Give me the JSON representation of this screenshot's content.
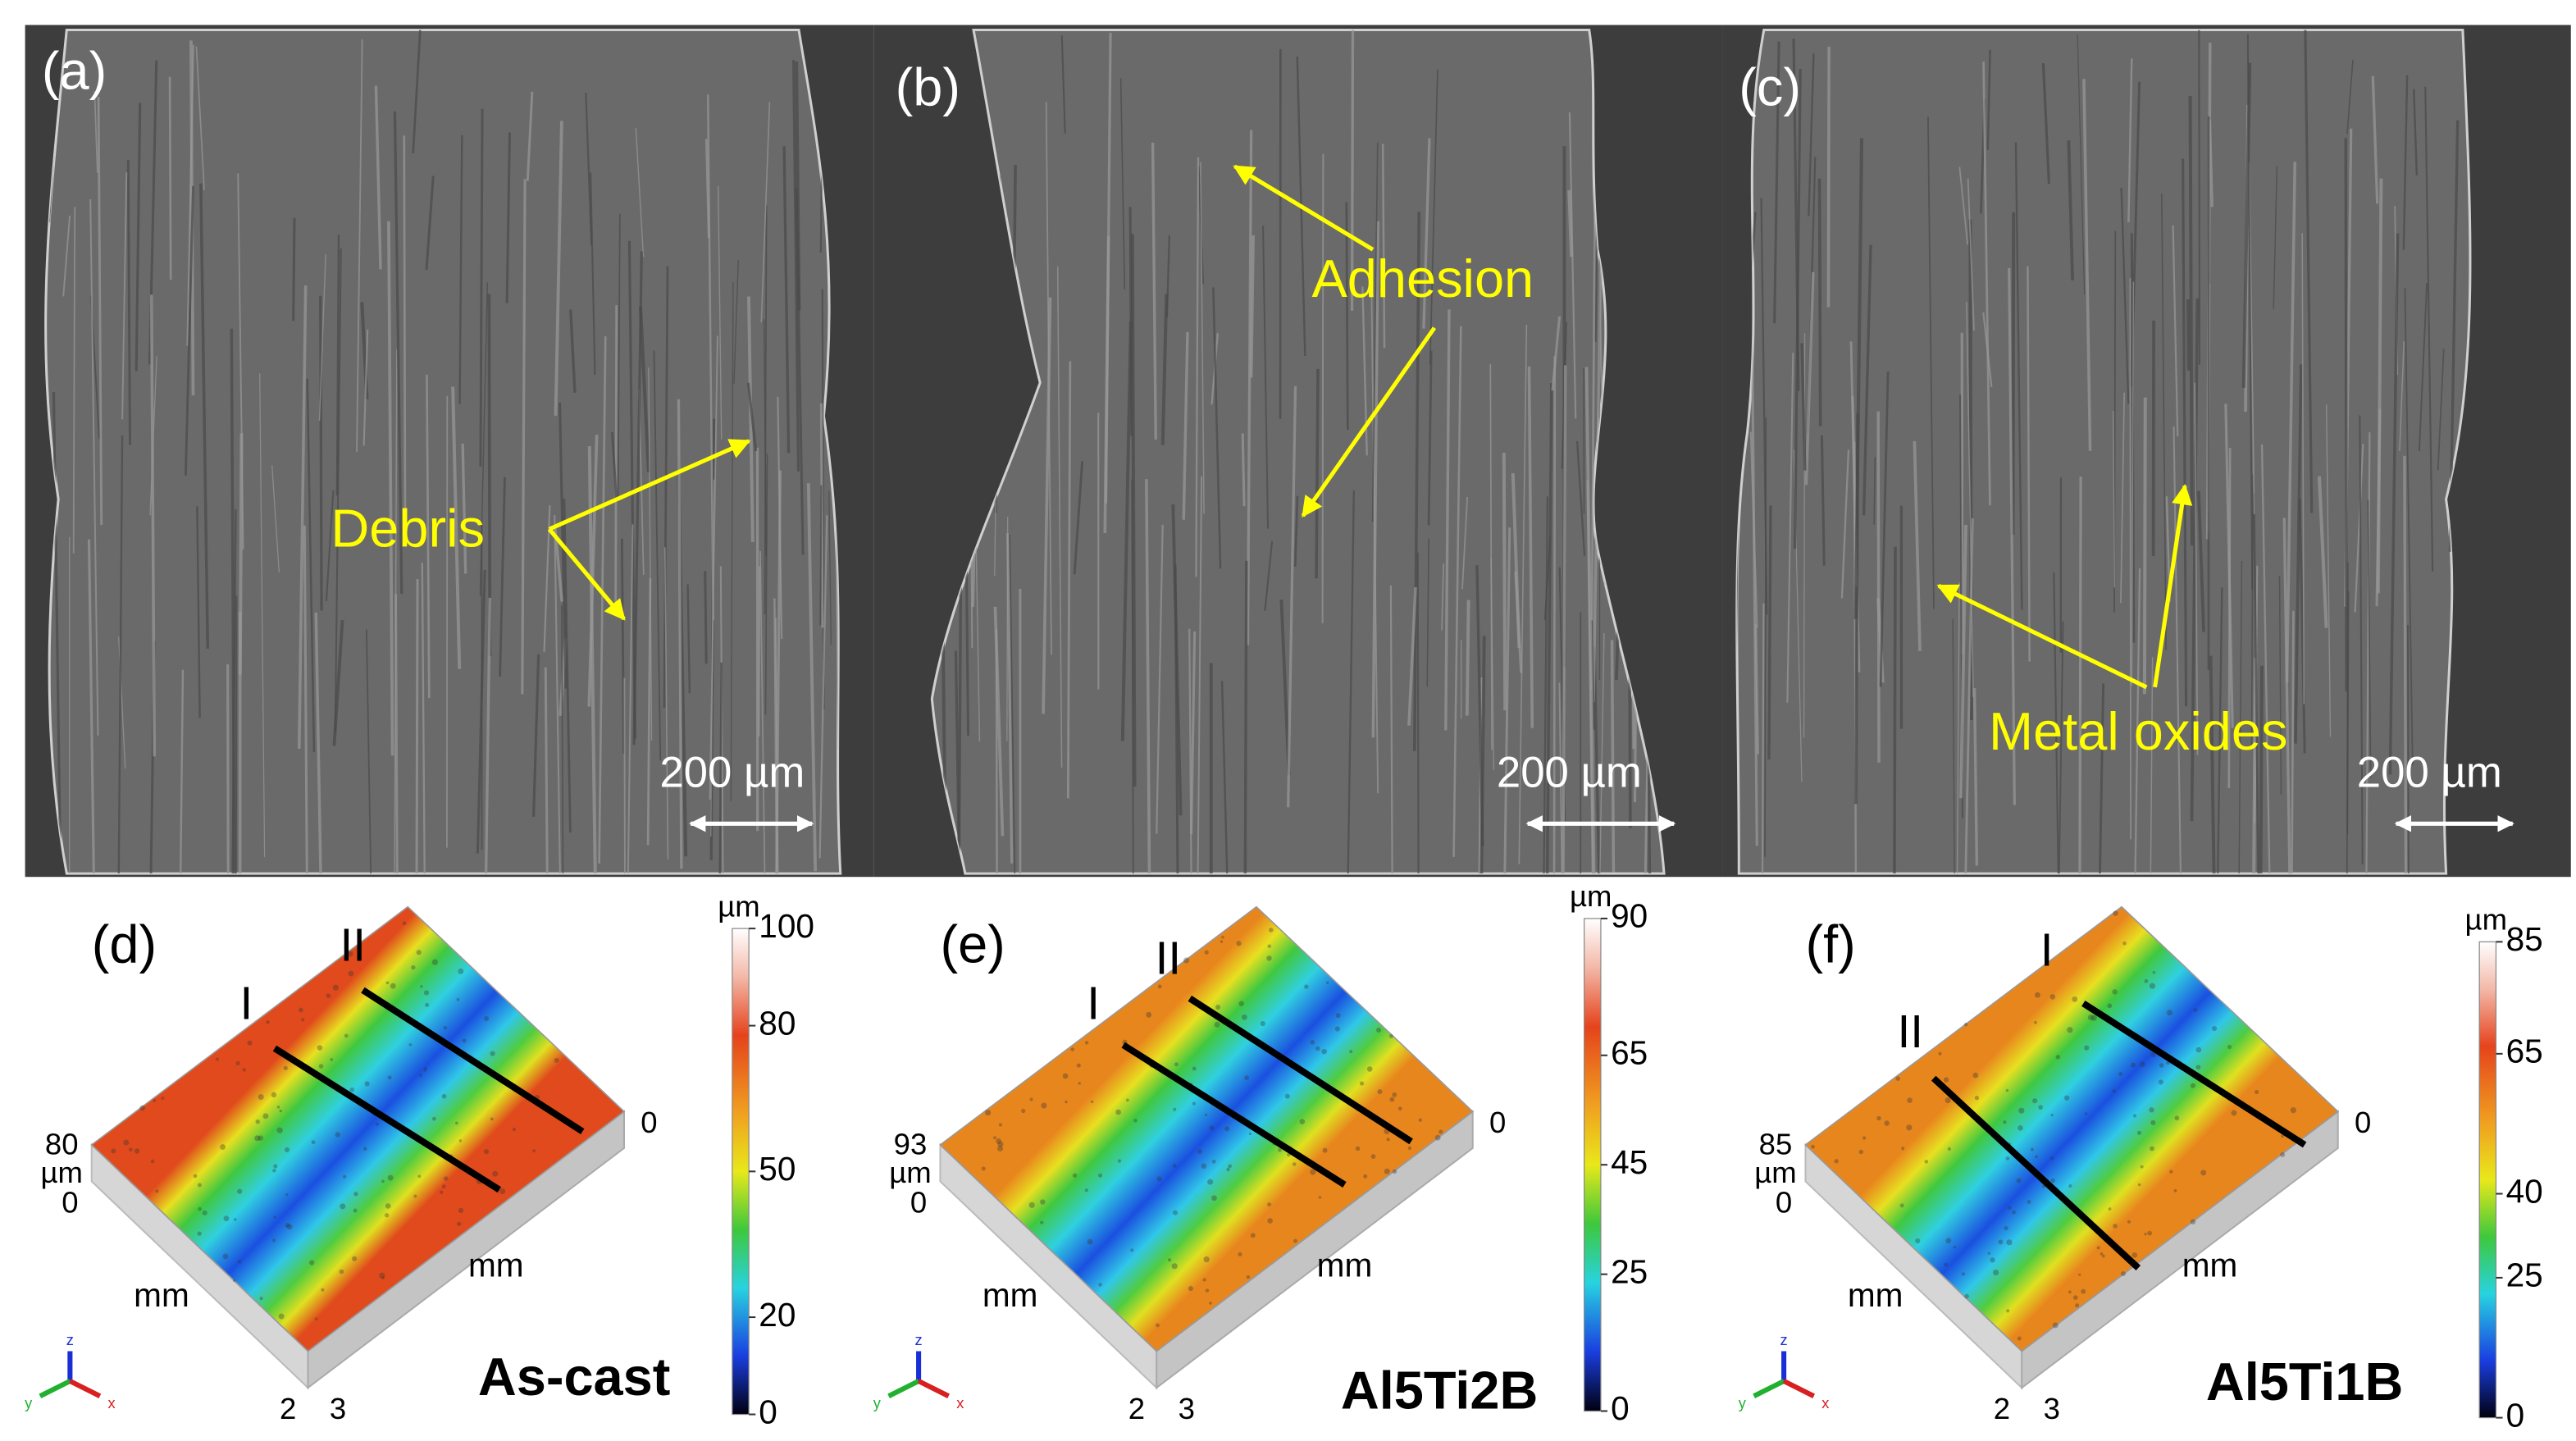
{
  "sem_panels": [
    {
      "label": "(a)",
      "scale_bar": "200 µm",
      "annotation": "Debris"
    },
    {
      "label": "(b)",
      "scale_bar": "200 µm",
      "annotation": "Adhesion"
    },
    {
      "label": "(c)",
      "scale_bar": "200 µm",
      "annotation": "Metal oxides"
    }
  ],
  "profile_panels": [
    {
      "label": "(d)",
      "sample": "As-cast",
      "section_lines": [
        "I",
        "II"
      ],
      "height_axis": {
        "max": 80,
        "unit": "µm",
        "min": 0
      },
      "plane_axes": {
        "left_unit": "mm",
        "right_unit": "mm",
        "right_end": 0,
        "corner_ticks": [
          2,
          3
        ]
      },
      "colorbar": {
        "unit": "µm",
        "ticks": [
          100,
          80,
          50,
          20,
          0
        ]
      },
      "triad": [
        "z",
        "y",
        "x"
      ]
    },
    {
      "label": "(e)",
      "sample": "Al5Ti2B",
      "section_lines": [
        "I",
        "II"
      ],
      "height_axis": {
        "max": 93,
        "unit": "µm",
        "min": 0
      },
      "plane_axes": {
        "left_unit": "mm",
        "right_unit": "mm",
        "right_end": 0,
        "corner_ticks": [
          2,
          3
        ]
      },
      "colorbar": {
        "unit": "µm",
        "ticks": [
          90,
          65,
          45,
          25,
          0
        ]
      },
      "triad": [
        "z",
        "y",
        "x"
      ]
    },
    {
      "label": "(f)",
      "sample": "Al5Ti1B",
      "section_lines": [
        "I",
        "II"
      ],
      "height_axis": {
        "max": 85,
        "unit": "µm",
        "min": 0
      },
      "plane_axes": {
        "left_unit": "mm",
        "right_unit": "mm",
        "right_end": 0,
        "corner_ticks": [
          2,
          3
        ]
      },
      "colorbar": {
        "unit": "µm",
        "ticks": [
          85,
          65,
          40,
          25,
          0
        ]
      },
      "triad": [
        "z",
        "y",
        "x"
      ]
    }
  ]
}
